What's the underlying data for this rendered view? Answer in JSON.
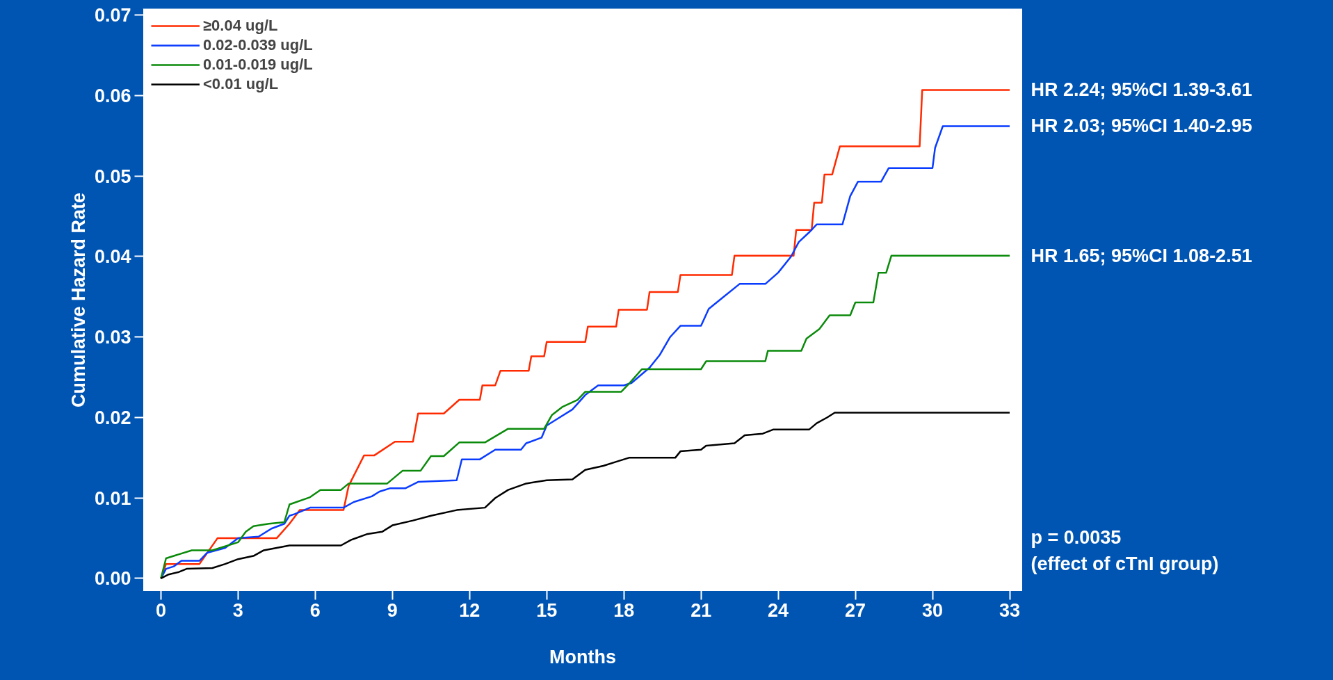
{
  "chart_data": {
    "type": "line",
    "xlabel": "Months",
    "ylabel": "Cumulative Hazard Rate",
    "xlim": [
      -0.7,
      33.5
    ],
    "ylim": [
      -0.0016,
      0.0708
    ],
    "xticks": [
      0,
      3,
      6,
      9,
      12,
      15,
      18,
      21,
      24,
      27,
      30,
      33
    ],
    "yticks": [
      {
        "value": 0,
        "label": "0.00"
      },
      {
        "value": 0.01,
        "label": "0.01"
      },
      {
        "value": 0.02,
        "label": "0.02"
      },
      {
        "value": 0.03,
        "label": "0.03"
      },
      {
        "value": 0.04,
        "label": "0.04"
      },
      {
        "value": 0.05,
        "label": "0.05"
      },
      {
        "value": 0.06,
        "label": "0.06"
      },
      {
        "value": 0.07,
        "label": "0.07"
      }
    ],
    "grid": false,
    "legend": "top left",
    "marker": "none",
    "line_style": "solid",
    "series": [
      {
        "name": "≥0.04 ug/L",
        "color": "#ff2a00",
        "x": [
          0,
          0.2,
          1.5,
          2.2,
          4.5,
          5,
          5.4,
          7.1,
          7.3,
          7.9,
          8.3,
          9.1,
          9.8,
          10.0,
          11,
          11.6,
          12.4,
          12.5,
          13.0,
          13.2,
          14.3,
          14.4,
          14.9,
          15.0,
          16.5,
          16.6,
          17.7,
          17.8,
          18.9,
          19.0,
          20.1,
          20.2,
          22.2,
          22.3,
          24.6,
          24.7,
          25.3,
          25.4,
          25.7,
          25.8,
          26.1,
          26.4,
          29.5,
          29.6,
          33
        ],
        "values": [
          0,
          0.0018,
          0.0018,
          0.005,
          0.005,
          0.0068,
          0.0085,
          0.0085,
          0.0115,
          0.0153,
          0.0153,
          0.017,
          0.017,
          0.0205,
          0.0205,
          0.0222,
          0.0222,
          0.024,
          0.024,
          0.0258,
          0.0258,
          0.0276,
          0.0276,
          0.0294,
          0.0294,
          0.0313,
          0.0313,
          0.0334,
          0.0334,
          0.0356,
          0.0356,
          0.0377,
          0.0377,
          0.0401,
          0.0401,
          0.0433,
          0.0433,
          0.0467,
          0.0467,
          0.0502,
          0.0502,
          0.0537,
          0.0537,
          0.0607,
          0.0607
        ]
      },
      {
        "name": "0.02-0.039 ug/L",
        "color": "#0a3cff",
        "x": [
          0,
          0.2,
          0.5,
          0.8,
          1.5,
          1.8,
          2.5,
          3,
          3.8,
          4.3,
          4.8,
          5.0,
          5.2,
          5.8,
          7.1,
          7.5,
          8.2,
          8.5,
          8.9,
          9.5,
          10.0,
          11.5,
          11.7,
          12.4,
          13.0,
          14.0,
          14.2,
          14.8,
          15.0,
          15.4,
          16.0,
          16.5,
          17,
          18,
          18.3,
          19.0,
          19.4,
          19.8,
          20.2,
          21.0,
          21.3,
          21.8,
          22.5,
          23.5,
          24.0,
          24.5,
          24.8,
          25.2,
          25.5,
          26.5,
          26.8,
          27.1,
          28.0,
          28.3,
          30.0,
          30.1,
          30.4,
          33
        ],
        "values": [
          0,
          0.0012,
          0.0015,
          0.0022,
          0.0022,
          0.0032,
          0.0038,
          0.005,
          0.0052,
          0.0062,
          0.0068,
          0.0078,
          0.008,
          0.0088,
          0.0088,
          0.0095,
          0.0102,
          0.0108,
          0.0112,
          0.0112,
          0.012,
          0.0122,
          0.0148,
          0.0148,
          0.016,
          0.016,
          0.0168,
          0.0175,
          0.019,
          0.0198,
          0.021,
          0.0228,
          0.024,
          0.024,
          0.0243,
          0.0262,
          0.0278,
          0.03,
          0.0314,
          0.0314,
          0.0335,
          0.0348,
          0.0366,
          0.0366,
          0.038,
          0.04,
          0.0418,
          0.043,
          0.044,
          0.044,
          0.0475,
          0.0493,
          0.0493,
          0.051,
          0.051,
          0.0535,
          0.0562,
          0.0562
        ]
      },
      {
        "name": "0.01-0.019 ug/L",
        "color": "#0a8a0a",
        "x": [
          0,
          0.2,
          1.2,
          2,
          2.5,
          3,
          3.3,
          3.6,
          4.2,
          4.8,
          5,
          5.8,
          6.2,
          7,
          7.3,
          8.8,
          9.4,
          10.1,
          10.5,
          11.0,
          11.6,
          12.6,
          13.5,
          14.9,
          15.2,
          15.6,
          16.2,
          16.5,
          17.9,
          18.2,
          18.7,
          21,
          21.2,
          23.5,
          23.6,
          24.9,
          25.1,
          25.6,
          26.0,
          26.8,
          27.0,
          27.7,
          27.9,
          28.2,
          28.4,
          33
        ],
        "values": [
          0,
          0.0025,
          0.0035,
          0.0035,
          0.004,
          0.0045,
          0.0058,
          0.0065,
          0.0068,
          0.007,
          0.0092,
          0.0101,
          0.011,
          0.011,
          0.0118,
          0.0118,
          0.0134,
          0.0134,
          0.0152,
          0.0152,
          0.0169,
          0.0169,
          0.0186,
          0.0186,
          0.0203,
          0.0213,
          0.0222,
          0.0232,
          0.0232,
          0.0242,
          0.026,
          0.026,
          0.027,
          0.027,
          0.0283,
          0.0283,
          0.0298,
          0.031,
          0.0327,
          0.0327,
          0.0343,
          0.0343,
          0.038,
          0.038,
          0.0401,
          0.0401
        ]
      },
      {
        "name": "<0.01 ug/L",
        "color": "#000000",
        "x": [
          0,
          0.3,
          0.7,
          1.0,
          2.0,
          2.5,
          3,
          3.6,
          4.0,
          5.0,
          7.0,
          7.4,
          8.0,
          8.6,
          9.0,
          9.8,
          10.5,
          11.5,
          12.6,
          13.0,
          13.5,
          14.2,
          15,
          16.0,
          16.5,
          17.2,
          17.7,
          18.2,
          20.0,
          20.2,
          21,
          21.2,
          22.3,
          22.7,
          23.4,
          23.8,
          25.2,
          25.5,
          25.9,
          26.2,
          33
        ],
        "values": [
          0,
          0.0005,
          0.0008,
          0.0012,
          0.0013,
          0.0018,
          0.0024,
          0.0028,
          0.0035,
          0.0041,
          0.0041,
          0.0048,
          0.0055,
          0.0058,
          0.0066,
          0.0072,
          0.0078,
          0.0085,
          0.0088,
          0.01,
          0.011,
          0.0118,
          0.0122,
          0.0123,
          0.0135,
          0.014,
          0.0145,
          0.015,
          0.015,
          0.0158,
          0.016,
          0.0165,
          0.0168,
          0.0178,
          0.018,
          0.0185,
          0.0185,
          0.0193,
          0.02,
          0.0206,
          0.0206
        ]
      }
    ],
    "annotations": [
      "HR 2.24; 95%CI 1.39-3.61",
      "HR 2.03; 95%CI 1.40-2.95",
      "HR 1.65; 95%CI 1.08-2.51",
      "p = 0.0035\n(effect of cTnI group)"
    ]
  }
}
